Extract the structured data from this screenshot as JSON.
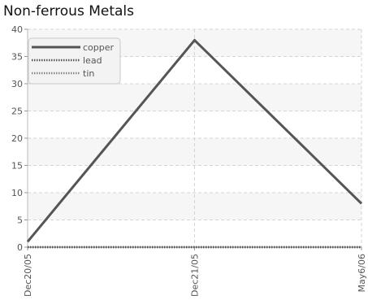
{
  "chart_data": {
    "type": "line",
    "title": "Non-ferrous Metals",
    "xlabel": "",
    "ylabel": "",
    "categories": [
      "Dec20/05",
      "Dec21/05",
      "May6/06"
    ],
    "ylim": [
      0,
      40
    ],
    "yticks": [
      0,
      5,
      10,
      15,
      20,
      25,
      30,
      35,
      40
    ],
    "grid": true,
    "legend_position": "top-left",
    "series": [
      {
        "name": "copper",
        "values": [
          1,
          38,
          8
        ],
        "color": "#555555",
        "style": "solid"
      },
      {
        "name": "lead",
        "values": [
          0,
          0,
          0
        ],
        "color": "#555555",
        "style": "dotted"
      },
      {
        "name": "tin",
        "values": [
          0,
          0,
          0
        ],
        "color": "#888888",
        "style": "dotted"
      }
    ]
  }
}
